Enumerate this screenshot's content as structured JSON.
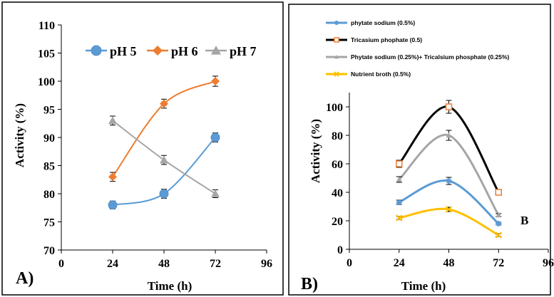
{
  "chart_data": [
    {
      "type": "line",
      "panel_label": "A)",
      "xlabel": "Time (h)",
      "ylabel": "Activity (%)",
      "xlim": [
        0,
        96
      ],
      "ylim": [
        70,
        110
      ],
      "x_ticks": [
        0,
        24,
        48,
        72,
        96
      ],
      "y_ticks": [
        70,
        75,
        80,
        85,
        90,
        95,
        100,
        105,
        110
      ],
      "x": [
        24,
        48,
        72
      ],
      "legend_position": "top-right",
      "grid": false,
      "series": [
        {
          "name": "pH 5",
          "values": [
            78,
            80,
            90
          ],
          "errors": [
            0.7,
            0.8,
            0.8
          ],
          "color": "#5B9BD5",
          "marker": "circle"
        },
        {
          "name": "pH 6",
          "values": [
            83,
            96,
            100
          ],
          "errors": [
            0.8,
            0.8,
            0.9
          ],
          "color": "#ED7D31",
          "marker": "diamond"
        },
        {
          "name": "pH 7",
          "values": [
            93,
            86,
            80
          ],
          "errors": [
            0.8,
            0.8,
            0.7
          ],
          "color": "#A5A5A5",
          "marker": "triangle"
        }
      ]
    },
    {
      "type": "line",
      "panel_label": "B)",
      "annotation": "B",
      "xlabel": "Time (h)",
      "ylabel": "Activity (%)",
      "xlim": [
        0,
        96
      ],
      "ylim": [
        0,
        110
      ],
      "x_ticks": [
        0,
        24,
        48,
        72,
        96
      ],
      "y_ticks": [
        0,
        20,
        40,
        60,
        80,
        100
      ],
      "x": [
        24,
        48,
        72
      ],
      "legend_position": "top-left",
      "grid": false,
      "series": [
        {
          "name": "phytate sodium (0.5%)",
          "values": [
            33,
            48,
            18
          ],
          "errors": [
            1.5,
            2.5,
            1.0
          ],
          "color": "#5B9BD5",
          "marker": "star"
        },
        {
          "name": "Tricasium phophate (0.5)",
          "values": [
            60,
            100,
            40
          ],
          "errors": [
            2.5,
            4.5,
            1.5
          ],
          "color": "#000000",
          "marker": "square"
        },
        {
          "name": "Phytate sodium (0.25%)+ Tricalsium phosphate (0.25%)",
          "values": [
            49,
            80,
            24
          ],
          "errors": [
            2.0,
            3.5,
            1.0
          ],
          "color": "#A5A5A5",
          "marker": "triangle"
        },
        {
          "name": "Nutrient broth (0.5%)",
          "values": [
            22,
            28,
            10
          ],
          "errors": [
            1.0,
            1.5,
            1.0
          ],
          "color": "#FFC000",
          "marker": "x"
        }
      ]
    }
  ]
}
